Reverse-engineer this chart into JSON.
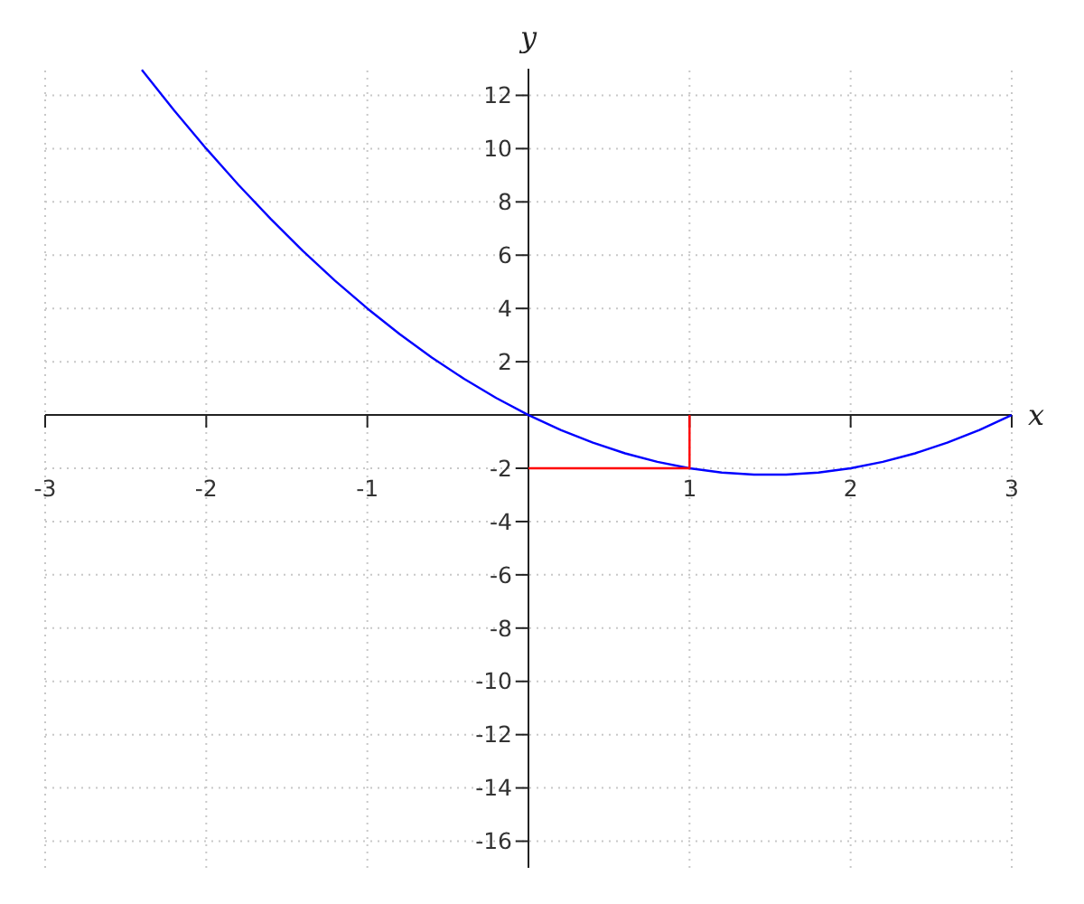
{
  "chart_data": {
    "type": "line",
    "xlabel": "x",
    "ylabel": "y",
    "xlim": [
      -3,
      3
    ],
    "ylim": [
      -17,
      13
    ],
    "xticks": [
      -3,
      -2,
      -1,
      1,
      2,
      3
    ],
    "yticks": [
      -16,
      -14,
      -12,
      -10,
      -8,
      -6,
      -4,
      -2,
      2,
      4,
      6,
      8,
      10,
      12
    ],
    "grid": true,
    "series": [
      {
        "color": "#0000ff",
        "x": [
          -2.4,
          -2.2,
          -2.0,
          -1.8,
          -1.6,
          -1.4,
          -1.2,
          -1.0,
          -0.8,
          -0.6,
          -0.4,
          -0.2,
          0,
          0.2,
          0.4,
          0.6,
          0.8,
          1.0,
          1.2,
          1.4,
          1.6,
          1.8,
          2.0,
          2.2,
          2.4,
          2.6,
          2.8,
          3.0
        ],
        "values": [
          12.96,
          11.44,
          10,
          8.64,
          7.36,
          6.16,
          5.04,
          4,
          3.04,
          2.16,
          1.36,
          0.64,
          0,
          -0.56,
          -1.04,
          -1.44,
          -1.76,
          -2,
          -2.16,
          -2.24,
          -2.24,
          -2.16,
          -2,
          -1.76,
          -1.44,
          -1.04,
          -0.56,
          0
        ]
      },
      {
        "color": "#ff0000",
        "x": [
          0,
          1,
          1
        ],
        "values": [
          -2,
          -2,
          0
        ]
      }
    ]
  }
}
